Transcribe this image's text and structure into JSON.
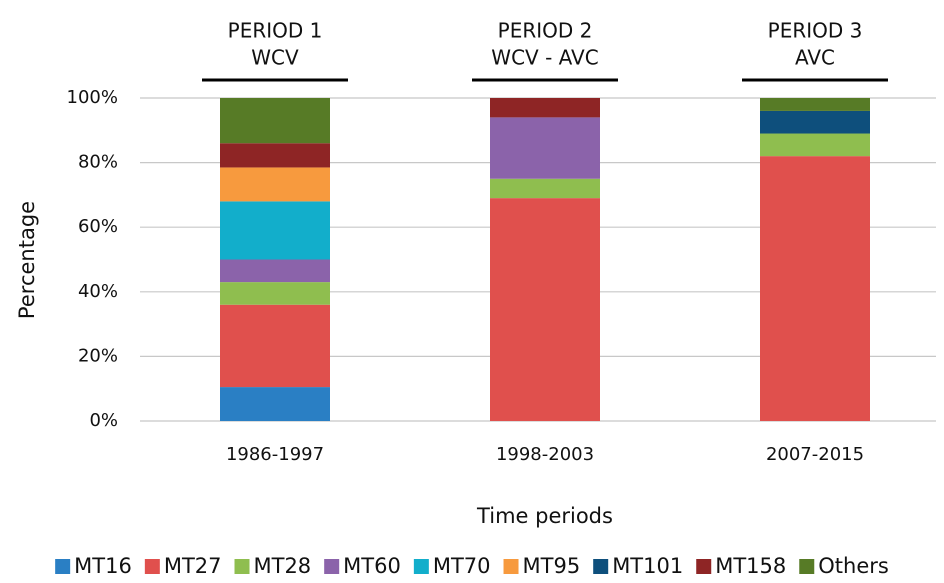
{
  "chart_data": {
    "type": "stacked_bar",
    "y_label": "Percentage",
    "x_label": "Time periods",
    "categories": [
      "1986-1997",
      "1998-2003",
      "2007-2015"
    ],
    "period_headers": [
      [
        "PERIOD 1",
        "WCV"
      ],
      [
        "PERIOD 2",
        "WCV - AVC"
      ],
      [
        "PERIOD 3",
        "AVC"
      ]
    ],
    "series": [
      {
        "name": "MT16",
        "color": "#2a7fc4",
        "values": [
          10.5,
          0,
          0
        ]
      },
      {
        "name": "MT27",
        "color": "#e0504d",
        "values": [
          25.5,
          69,
          82
        ]
      },
      {
        "name": "MT28",
        "color": "#8fbe4f",
        "values": [
          7,
          6,
          7
        ]
      },
      {
        "name": "MT60",
        "color": "#8b63aa",
        "values": [
          7,
          19,
          0
        ]
      },
      {
        "name": "MT70",
        "color": "#12aecb",
        "values": [
          18,
          0,
          0
        ]
      },
      {
        "name": "MT95",
        "color": "#f79a3e",
        "values": [
          10.5,
          0,
          0
        ]
      },
      {
        "name": "MT101",
        "color": "#0e4f7c",
        "values": [
          0,
          0,
          7
        ]
      },
      {
        "name": "MT158",
        "color": "#8e2525",
        "values": [
          7.5,
          6,
          0
        ]
      },
      {
        "name": "Others",
        "color": "#577b26",
        "values": [
          14,
          0,
          4
        ]
      }
    ],
    "ylim": [
      0,
      100
    ],
    "yticks": [
      {
        "value": 0,
        "label": "0%"
      },
      {
        "value": 20,
        "label": "20%"
      },
      {
        "value": 40,
        "label": "40%"
      },
      {
        "value": 60,
        "label": "60%"
      },
      {
        "value": 80,
        "label": "80%"
      },
      {
        "value": 100,
        "label": "100%"
      }
    ],
    "grid": true,
    "legend": "bottom"
  }
}
